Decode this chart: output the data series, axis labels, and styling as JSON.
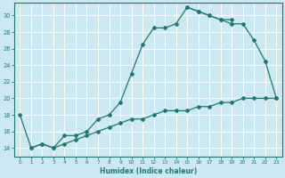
{
  "xlabel": "Humidex (Indice chaleur)",
  "bg_color": "#cce8f0",
  "grid_color": "#ffffff",
  "line_color": "#1a7a6e",
  "xlim": [
    -0.5,
    23.5
  ],
  "ylim": [
    13.0,
    31.5
  ],
  "xticks": [
    0,
    1,
    2,
    3,
    4,
    5,
    6,
    7,
    8,
    9,
    10,
    11,
    12,
    13,
    14,
    15,
    16,
    17,
    18,
    19,
    20,
    21,
    22,
    23
  ],
  "yticks": [
    14,
    16,
    18,
    20,
    22,
    24,
    26,
    28,
    30
  ],
  "line1_x": [
    0,
    1,
    2,
    3,
    4,
    5,
    6,
    7,
    8,
    9,
    10,
    11,
    12,
    13,
    14,
    15,
    16,
    17,
    18,
    19
  ],
  "line1_y": [
    18,
    14,
    14.5,
    14,
    15.5,
    15.5,
    16,
    17.5,
    18,
    19.5,
    23,
    26.5,
    28.5,
    28.5,
    29,
    31,
    30.5,
    30,
    29.5,
    29.5
  ],
  "line2_x": [
    15,
    16,
    17,
    18,
    19,
    20,
    21,
    22,
    23
  ],
  "line2_y": [
    31,
    30.5,
    30,
    29.5,
    29,
    29,
    27,
    24.5,
    20
  ],
  "line3_x": [
    1,
    2,
    3,
    4,
    5,
    6,
    7,
    8,
    9,
    10,
    11,
    12,
    13,
    14,
    15,
    16,
    17,
    18,
    19,
    20,
    21,
    22,
    23
  ],
  "line3_y": [
    14,
    14.5,
    14,
    14.5,
    15,
    15.5,
    16,
    16.5,
    17,
    17.5,
    17.5,
    18,
    18.5,
    18.5,
    18.5,
    19,
    19,
    19.5,
    19.5,
    20,
    20,
    20,
    20
  ]
}
